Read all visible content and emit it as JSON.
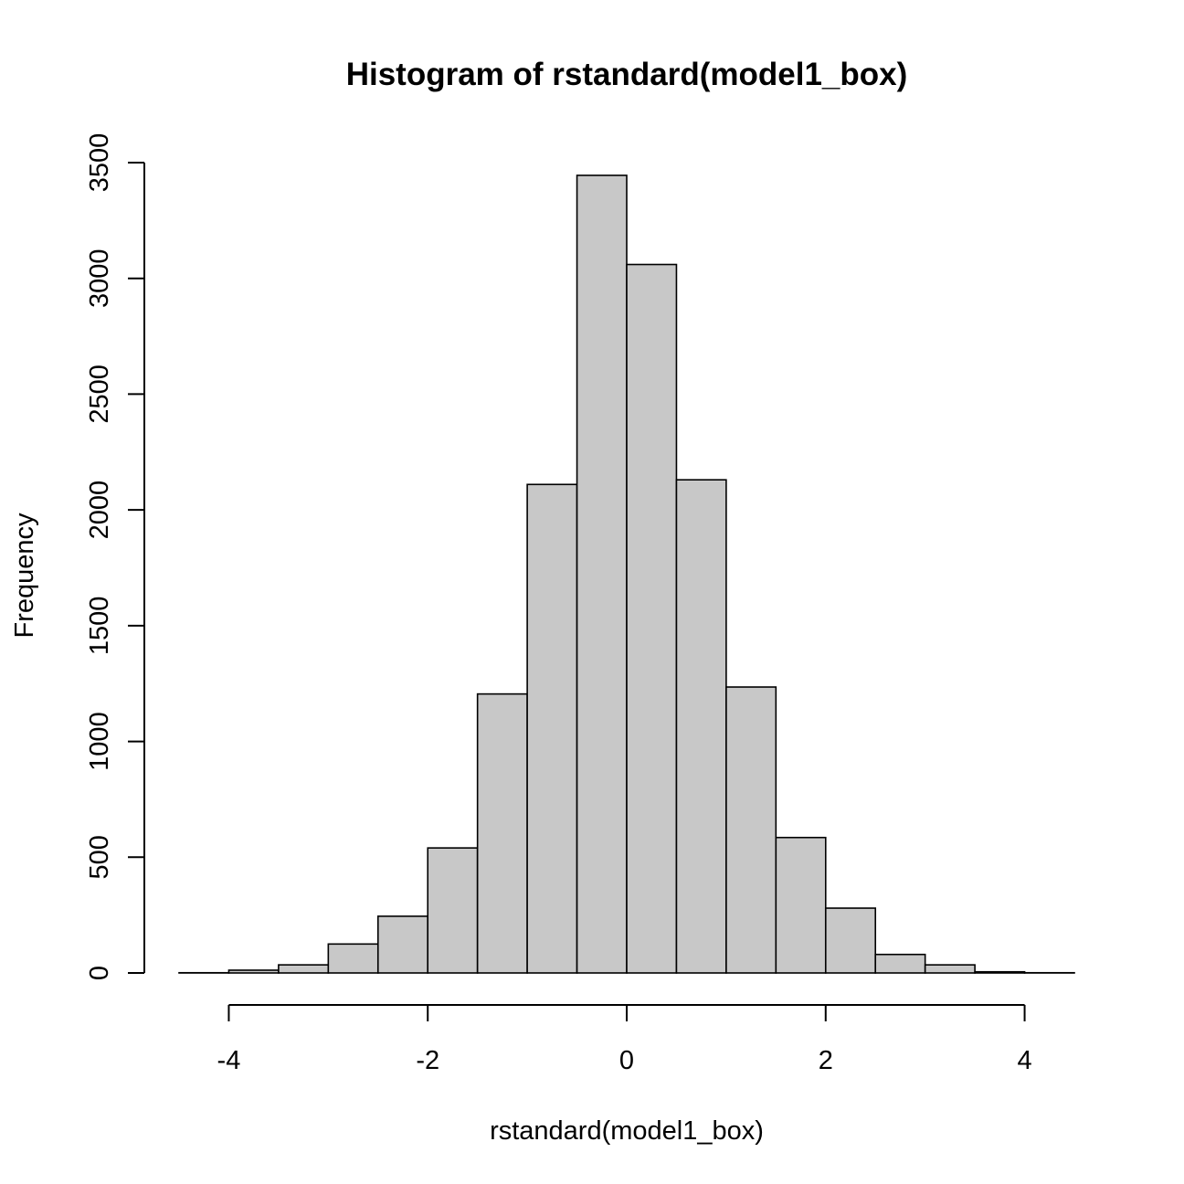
{
  "chart_data": {
    "type": "bar",
    "title": "Histogram of rstandard(model1_box)",
    "xlabel": "rstandard(model1_box)",
    "ylabel": "Frequency",
    "xlim": [
      -4.5,
      4.5
    ],
    "ylim": [
      0,
      3500
    ],
    "x_ticks": [
      -4,
      -2,
      0,
      2,
      4
    ],
    "y_ticks": [
      0,
      500,
      1000,
      1500,
      2000,
      2500,
      3000,
      3500
    ],
    "bin_edges": [
      -4.5,
      -4.0,
      -3.5,
      -3.0,
      -2.5,
      -2.0,
      -1.5,
      -1.0,
      -0.5,
      0.0,
      0.5,
      1.0,
      1.5,
      2.0,
      2.5,
      3.0,
      3.5,
      4.0,
      4.5
    ],
    "values": [
      1,
      12,
      35,
      125,
      245,
      540,
      1205,
      2110,
      3445,
      3060,
      2130,
      1235,
      585,
      280,
      80,
      35,
      5,
      1
    ],
    "bar_color": "#c8c8c8",
    "grid": false,
    "legend": "none"
  }
}
